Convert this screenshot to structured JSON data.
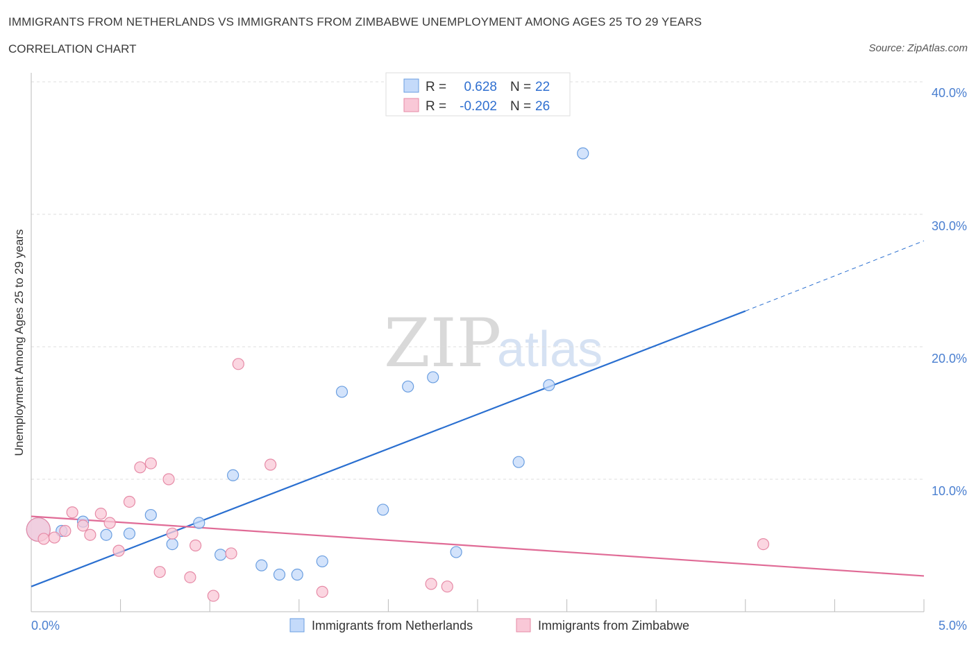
{
  "header": {
    "title": "IMMIGRANTS FROM NETHERLANDS VS IMMIGRANTS FROM ZIMBABWE UNEMPLOYMENT AMONG AGES 25 TO 29 YEARS",
    "subtitle": "CORRELATION CHART",
    "source": "Source: ZipAtlas.com"
  },
  "watermark": {
    "zip": "ZIP",
    "atlas": "atlas"
  },
  "chart_data": {
    "type": "scatter",
    "title": "IMMIGRANTS FROM NETHERLANDS VS IMMIGRANTS FROM ZIMBABWE UNEMPLOYMENT AMONG AGES 25 TO 29 YEARS",
    "xlabel": "",
    "ylabel": "Unemployment Among Ages 25 to 29 years",
    "xlim": [
      0,
      5
    ],
    "ylim": [
      0,
      40
    ],
    "x_tick_labels": [
      "0.0%",
      "5.0%"
    ],
    "y_ticks": [
      10,
      20,
      30,
      40
    ],
    "y_tick_labels": [
      "10.0%",
      "20.0%",
      "30.0%",
      "40.0%"
    ],
    "grid": true,
    "legend": {
      "position": "top-center",
      "entries": [
        {
          "r_label": "R =",
          "r_value": "0.628",
          "n_label": "N =",
          "n_value": "22"
        },
        {
          "r_label": "R =",
          "r_value": "-0.202",
          "n_label": "N =",
          "n_value": "26"
        }
      ]
    },
    "series": [
      {
        "name": "Immigrants from Netherlands",
        "color": "#6a9ee0",
        "fill": "#c4dafa",
        "line_color": "#2a6fd0",
        "points": [
          {
            "x": 0.04,
            "y": 6.2,
            "big": true
          },
          {
            "x": 0.17,
            "y": 6.1
          },
          {
            "x": 0.29,
            "y": 6.8
          },
          {
            "x": 0.42,
            "y": 5.8
          },
          {
            "x": 0.55,
            "y": 5.9
          },
          {
            "x": 0.67,
            "y": 7.3
          },
          {
            "x": 0.79,
            "y": 5.1
          },
          {
            "x": 0.94,
            "y": 6.7
          },
          {
            "x": 1.06,
            "y": 4.3
          },
          {
            "x": 1.13,
            "y": 10.3
          },
          {
            "x": 1.29,
            "y": 3.5
          },
          {
            "x": 1.39,
            "y": 2.8
          },
          {
            "x": 1.49,
            "y": 2.8
          },
          {
            "x": 1.63,
            "y": 3.8
          },
          {
            "x": 1.74,
            "y": 16.6
          },
          {
            "x": 1.97,
            "y": 7.7
          },
          {
            "x": 2.11,
            "y": 17.0
          },
          {
            "x": 2.25,
            "y": 17.7
          },
          {
            "x": 2.38,
            "y": 4.5
          },
          {
            "x": 2.73,
            "y": 11.3
          },
          {
            "x": 2.9,
            "y": 17.1
          },
          {
            "x": 3.09,
            "y": 34.6
          }
        ],
        "trend": {
          "x0": 0.0,
          "y0": 1.9,
          "x1": 4.0,
          "y1": 22.7,
          "x_dash_end": 5.0,
          "y_dash_end": 28.0
        }
      },
      {
        "name": "Immigrants from Zimbabwe",
        "color": "#e68aa6",
        "fill": "#f9c8d7",
        "line_color": "#e06b96",
        "points": [
          {
            "x": 0.04,
            "y": 6.2,
            "big": true
          },
          {
            "x": 0.07,
            "y": 5.5
          },
          {
            "x": 0.13,
            "y": 5.6
          },
          {
            "x": 0.19,
            "y": 6.1
          },
          {
            "x": 0.23,
            "y": 7.5
          },
          {
            "x": 0.29,
            "y": 6.5
          },
          {
            "x": 0.33,
            "y": 5.8
          },
          {
            "x": 0.39,
            "y": 7.4
          },
          {
            "x": 0.44,
            "y": 6.7
          },
          {
            "x": 0.49,
            "y": 4.6
          },
          {
            "x": 0.55,
            "y": 8.3
          },
          {
            "x": 0.61,
            "y": 10.9
          },
          {
            "x": 0.67,
            "y": 11.2
          },
          {
            "x": 0.72,
            "y": 3.0
          },
          {
            "x": 0.77,
            "y": 10.0
          },
          {
            "x": 0.79,
            "y": 5.9
          },
          {
            "x": 0.89,
            "y": 2.6
          },
          {
            "x": 0.92,
            "y": 5.0
          },
          {
            "x": 1.02,
            "y": 1.2
          },
          {
            "x": 1.12,
            "y": 4.4
          },
          {
            "x": 1.16,
            "y": 18.7
          },
          {
            "x": 1.34,
            "y": 11.1
          },
          {
            "x": 1.63,
            "y": 1.5
          },
          {
            "x": 2.24,
            "y": 2.1
          },
          {
            "x": 2.33,
            "y": 1.9
          },
          {
            "x": 4.1,
            "y": 5.1
          }
        ],
        "trend": {
          "x0": 0.0,
          "y0": 7.2,
          "x1": 5.0,
          "y1": 2.7
        }
      }
    ]
  }
}
